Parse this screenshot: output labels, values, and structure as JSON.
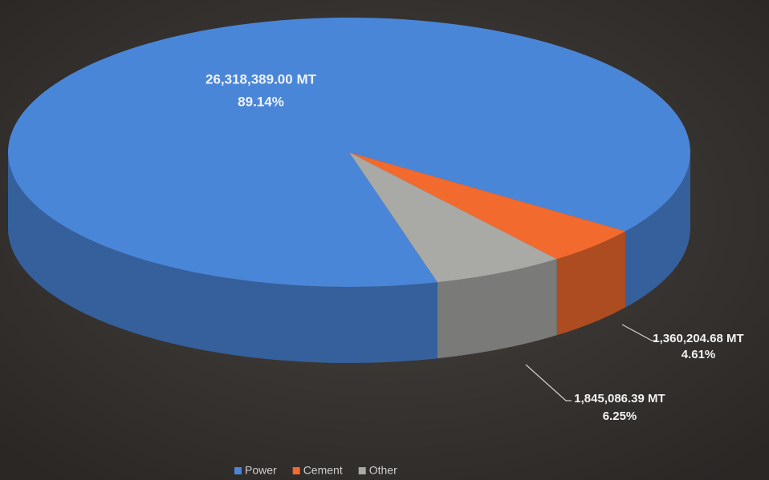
{
  "chart_data": {
    "type": "pie",
    "categories": [
      "Power",
      "Cement",
      "Other"
    ],
    "values": [
      26318389.0,
      1360204.68,
      1845086.39
    ],
    "value_labels": [
      "26,318,389.00 MT",
      "1,360,204.68 MT",
      "1,845,086.39 MT"
    ],
    "percent_labels": [
      "89.14%",
      "4.61%",
      "6.25%"
    ],
    "colors": [
      "#4a86d8",
      "#f26a2e",
      "#a9a9a6"
    ],
    "legend": "bottom"
  }
}
